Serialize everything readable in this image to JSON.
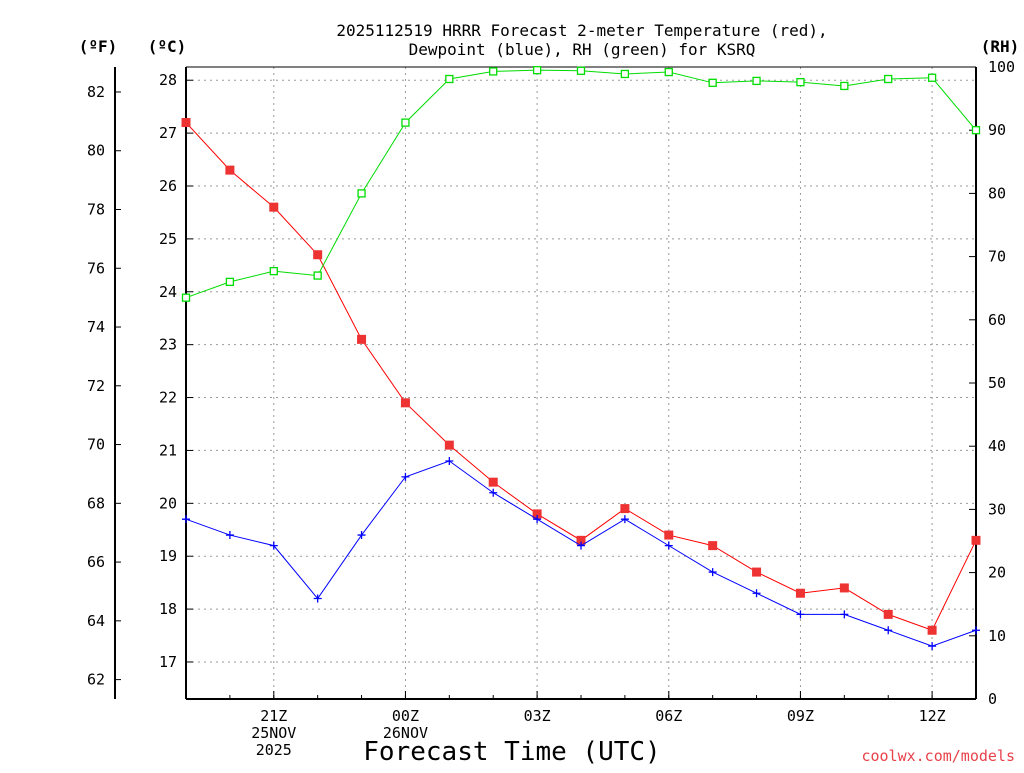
{
  "chart_data": {
    "type": "line",
    "title_line1": "2025112519 HRRR Forecast 2-meter Temperature (red),",
    "title_line2": "Dewpoint (blue), RH (green) for KSRQ",
    "xlabel": "Forecast Time (UTC)",
    "credit": "coolwx.com/models",
    "grid": true,
    "axis_units": {
      "fahrenheit": "(ºF)",
      "celsius": "(ºC)",
      "rh": "(RH)"
    },
    "x": [
      19,
      20,
      21,
      22,
      23,
      24,
      25,
      26,
      27,
      28,
      29,
      30,
      31,
      32,
      33,
      34,
      35,
      36,
      37
    ],
    "xlim": [
      19,
      37
    ],
    "x_ticks": [
      {
        "x": 21,
        "lines": [
          "21Z",
          "25NOV",
          "2025"
        ]
      },
      {
        "x": 24,
        "lines": [
          "00Z",
          "26NOV"
        ]
      },
      {
        "x": 27,
        "lines": [
          "03Z"
        ]
      },
      {
        "x": 30,
        "lines": [
          "06Z"
        ]
      },
      {
        "x": 33,
        "lines": [
          "09Z"
        ]
      },
      {
        "x": 36,
        "lines": [
          "12Z"
        ]
      }
    ],
    "celsius_axis": {
      "ylim": [
        16.3,
        28.25
      ],
      "ticks": [
        17,
        18,
        19,
        20,
        21,
        22,
        23,
        24,
        25,
        26,
        27,
        28
      ]
    },
    "fahrenheit_axis": {
      "ylim": [
        61.34,
        82.85
      ],
      "ticks": [
        62,
        64,
        66,
        68,
        70,
        72,
        74,
        76,
        78,
        80,
        82
      ]
    },
    "rh_axis": {
      "ylim": [
        0,
        100
      ],
      "ticks": [
        0,
        10,
        20,
        30,
        40,
        50,
        60,
        70,
        80,
        90,
        100
      ]
    },
    "series": [
      {
        "name": "Temperature",
        "axis": "celsius",
        "color": "#ff0000",
        "marker": "filled-square",
        "values": [
          27.2,
          26.3,
          25.6,
          24.7,
          23.1,
          21.9,
          21.1,
          20.4,
          19.8,
          19.3,
          19.9,
          19.4,
          19.2,
          18.7,
          18.3,
          18.4,
          17.9,
          17.6,
          19.3
        ]
      },
      {
        "name": "Dewpoint",
        "axis": "celsius",
        "color": "#0000ff",
        "marker": "plus",
        "values": [
          19.7,
          19.4,
          19.2,
          18.2,
          19.4,
          20.5,
          20.8,
          20.2,
          19.7,
          19.2,
          19.7,
          19.2,
          18.7,
          18.3,
          17.9,
          17.9,
          17.6,
          17.3,
          17.6
        ]
      },
      {
        "name": "RH",
        "axis": "rh",
        "color": "#00dd00",
        "marker": "open-square",
        "values": [
          63.5,
          66,
          67.7,
          67,
          80,
          91.2,
          98.1,
          99.3,
          99.5,
          99.4,
          98.9,
          99.2,
          97.5,
          97.8,
          97.6,
          97,
          98.1,
          98.3,
          90
        ]
      }
    ]
  }
}
